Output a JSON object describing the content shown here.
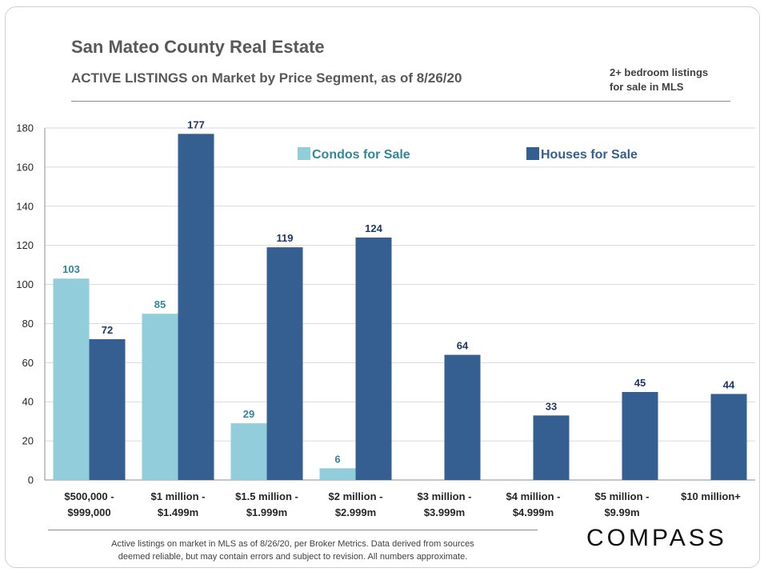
{
  "header": {
    "title": "San Mateo County Real Estate",
    "subtitle": "ACTIVE LISTINGS on Market  by Price Segment, as of 8/26/20",
    "note_lines": [
      "2+ bedroom listings",
      "for sale in MLS"
    ]
  },
  "footer": {
    "lines": [
      "Active listings  on market in MLS as of 8/26/20, per Broker Metrics. Data derived from sources",
      "deemed reliable, but may contain errors and subject to revision.  All numbers approximate."
    ],
    "logo": "COMPASS"
  },
  "colors": {
    "condos": "#92cddc",
    "houses": "#355f91",
    "condo_label": "#31859c",
    "house_label": "#1f3864",
    "grid": "#d9d9d9",
    "axis_text": "#262626"
  },
  "chart_data": {
    "type": "bar",
    "categories": [
      [
        "$500,000 -",
        "$999,000"
      ],
      [
        "$1 million -",
        "$1.499m"
      ],
      [
        "$1.5 million -",
        "$1.999m"
      ],
      [
        "$2 million -",
        "$2.999m"
      ],
      [
        "$3 million -",
        "$3.999m"
      ],
      [
        "$4 million -",
        "$4.999m"
      ],
      [
        "$5 million -",
        "$9.99m"
      ],
      [
        "$10 million+"
      ]
    ],
    "series": [
      {
        "name": "Condos for Sale",
        "values": [
          103,
          85,
          29,
          6,
          null,
          null,
          null,
          null
        ]
      },
      {
        "name": "Houses for Sale",
        "values": [
          72,
          177,
          119,
          124,
          64,
          33,
          45,
          44
        ]
      }
    ],
    "ylim": [
      0,
      180
    ],
    "yticks": [
      0,
      20,
      40,
      60,
      80,
      100,
      120,
      140,
      160,
      180
    ],
    "grid": true,
    "legend_position": "top-center",
    "data_labels": true
  }
}
